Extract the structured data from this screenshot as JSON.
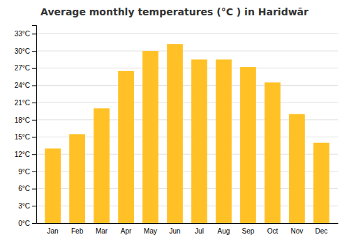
{
  "chart_data": {
    "type": "bar",
    "title": "Average monthly temperatures (°C ) in Haridwār",
    "categories": [
      "Jan",
      "Feb",
      "Mar",
      "Apr",
      "May",
      "Jun",
      "Jul",
      "Aug",
      "Sep",
      "Oct",
      "Nov",
      "Dec"
    ],
    "values": [
      13.0,
      15.5,
      20.0,
      26.5,
      30.0,
      31.2,
      28.5,
      28.5,
      27.2,
      24.5,
      19.0,
      14.0
    ],
    "color": "#FFC125",
    "ylim": [
      0,
      34.5
    ],
    "yticks": [
      {
        "value": 0,
        "label": "0°C"
      },
      {
        "value": 3,
        "label": "3°C"
      },
      {
        "value": 6,
        "label": "6°C"
      },
      {
        "value": 9,
        "label": "9°C"
      },
      {
        "value": 12,
        "label": "12°C"
      },
      {
        "value": 15,
        "label": "15°C"
      },
      {
        "value": 18,
        "label": "18°C"
      },
      {
        "value": 21,
        "label": "21°C"
      },
      {
        "value": 24,
        "label": "24°C"
      },
      {
        "value": 27,
        "label": "27°C"
      },
      {
        "value": 30,
        "label": "30°C"
      },
      {
        "value": 33,
        "label": "33°C"
      }
    ],
    "grid": true
  }
}
